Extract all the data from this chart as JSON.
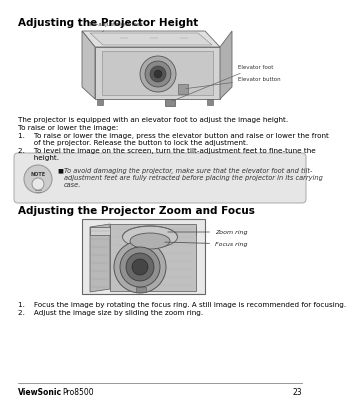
{
  "bg_color": "#ffffff",
  "title1": "Adjusting the Projector Height",
  "title2": "Adjusting the Projector Zoom and Focus",
  "footer_brand": "ViewSonic",
  "footer_model": "Pro8500",
  "footer_page": "23",
  "body_text1": "The projector is equipped with an elevator foot to adjust the image height.",
  "body_text2": "To raise or lower the image:",
  "step1_height_a": "1.    To raise or lower the image, press the elevator button and raise or lower the front",
  "step1_height_b": "       of the projector. Release the button to lock the adjustment.",
  "step2_height_a": "2.    To level the image on the screen, turn the tilt-adjustment feet to fine-tune the",
  "step2_height_b": "       height.",
  "note_text_a": "To avoid damaging the projector, make sure that the elevator foot and tilt-",
  "note_text_b": "adjustment feet are fully retracted before placing the projector in its carrying",
  "note_text_c": "case.",
  "step1_zoom_a": "1.    Focus the image by rotating the focus ring. A still image is recommended for focusing.",
  "step2_zoom_a": "2.    Adjust the image size by sliding the zoom ring.",
  "label_tilt": "Tilt-adjustment feet",
  "label_elevator_foot": "Elevator foot",
  "label_elevator_button": "Elevator button",
  "label_zoom_ring": "Zoom ring",
  "label_focus_ring": "Focus ring",
  "title_fontsize": 7.5,
  "body_fontsize": 5.2,
  "label_fontsize": 4.0,
  "footer_fontsize": 5.5,
  "note_fontsize": 4.8
}
